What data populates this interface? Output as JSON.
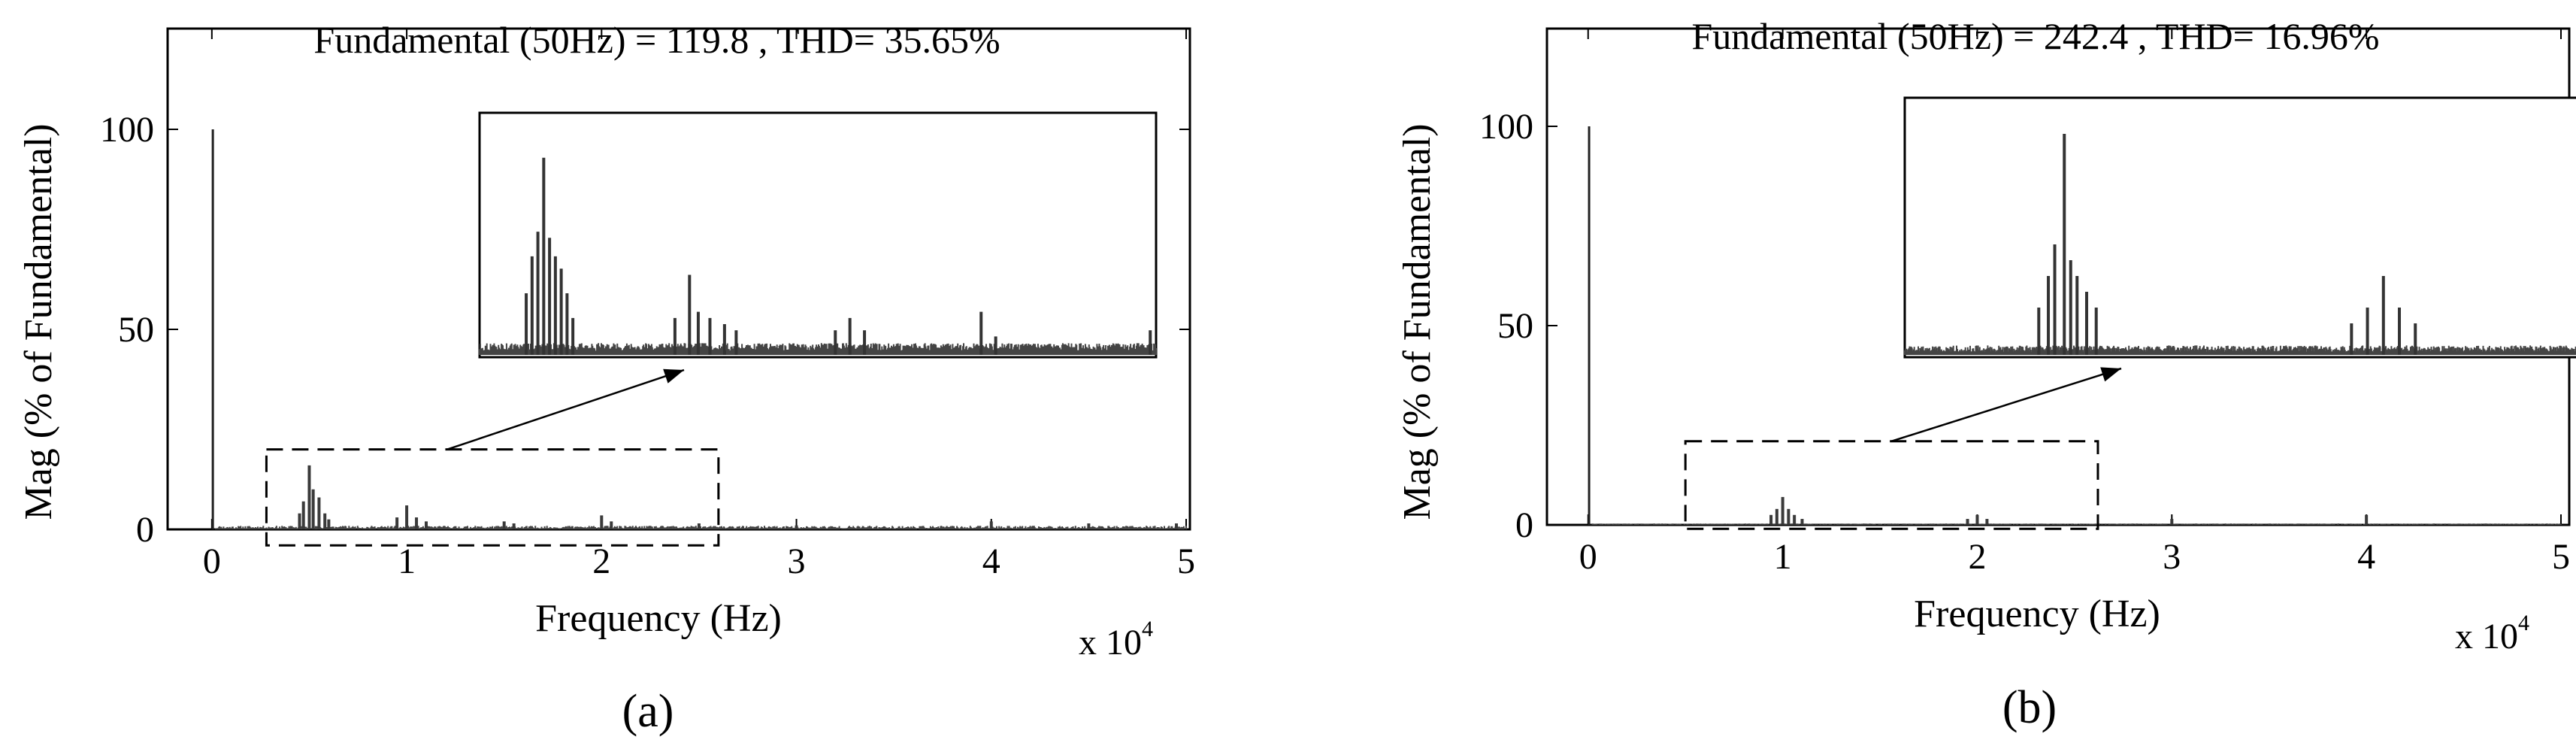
{
  "chart_data": [
    {
      "type": "bar",
      "panel_label": "(a)",
      "title": "Fundamental (50Hz) = 119.8 , THD= 35.65%",
      "xlabel": "Frequency (Hz)",
      "ylabel": "Mag (% of Fundamental)",
      "x_multiplier_label": "x 10",
      "x_multiplier_exponent": "4",
      "xlim": [
        -0.2,
        5.0
      ],
      "ylim": [
        0,
        110
      ],
      "xticks": [
        "0",
        "1",
        "2",
        "3",
        "4",
        "5"
      ],
      "yticks": [
        "0",
        "50",
        "100"
      ],
      "grid": false,
      "fundamental": {
        "x": 0.005,
        "y": 100
      },
      "peaks": [
        {
          "x": 0.5,
          "y": 16
        },
        {
          "x": 0.52,
          "y": 10
        },
        {
          "x": 0.47,
          "y": 7
        },
        {
          "x": 0.55,
          "y": 8
        },
        {
          "x": 0.45,
          "y": 4
        },
        {
          "x": 0.58,
          "y": 4
        },
        {
          "x": 0.6,
          "y": 2.5
        },
        {
          "x": 1.0,
          "y": 6
        },
        {
          "x": 0.95,
          "y": 3
        },
        {
          "x": 1.05,
          "y": 3
        },
        {
          "x": 1.1,
          "y": 2
        },
        {
          "x": 1.5,
          "y": 2
        },
        {
          "x": 1.55,
          "y": 1.5
        },
        {
          "x": 2.0,
          "y": 3.5
        },
        {
          "x": 2.05,
          "y": 2
        },
        {
          "x": 2.5,
          "y": 1.5
        },
        {
          "x": 3.0,
          "y": 1
        },
        {
          "x": 4.0,
          "y": 2
        },
        {
          "x": 4.5,
          "y": 1.5
        },
        {
          "x": 4.95,
          "y": 1.5
        }
      ],
      "noise_level": 1.0,
      "zoom_box": {
        "x_range": [
          0.28,
          2.6
        ],
        "y_range": [
          -4,
          20
        ]
      },
      "inset": {
        "x_range": [
          0.28,
          2.6
        ],
        "y_max": 18,
        "peaks": [
          {
            "x": 0.5,
            "y": 16
          },
          {
            "x": 0.48,
            "y": 10
          },
          {
            "x": 0.46,
            "y": 8
          },
          {
            "x": 0.52,
            "y": 9.5
          },
          {
            "x": 0.54,
            "y": 8
          },
          {
            "x": 0.56,
            "y": 7
          },
          {
            "x": 0.58,
            "y": 5
          },
          {
            "x": 0.44,
            "y": 5
          },
          {
            "x": 0.6,
            "y": 3
          },
          {
            "x": 0.95,
            "y": 3
          },
          {
            "x": 1.0,
            "y": 6.5
          },
          {
            "x": 1.03,
            "y": 3.5
          },
          {
            "x": 1.07,
            "y": 3
          },
          {
            "x": 1.12,
            "y": 2.5
          },
          {
            "x": 1.16,
            "y": 2
          },
          {
            "x": 1.5,
            "y": 2
          },
          {
            "x": 1.55,
            "y": 3
          },
          {
            "x": 1.6,
            "y": 2
          },
          {
            "x": 2.0,
            "y": 3.5
          },
          {
            "x": 2.05,
            "y": 1.5
          },
          {
            "x": 2.58,
            "y": 2
          }
        ],
        "noise_level": 0.8
      }
    },
    {
      "type": "bar",
      "panel_label": "(b)",
      "title": "Fundamental (50Hz) = 242.4 , THD= 16.96%",
      "xlabel": "Frequency (Hz)",
      "ylabel": "Mag (% of Fundamental)",
      "x_multiplier_label": "x 10",
      "x_multiplier_exponent": "4",
      "xlim": [
        -0.2,
        5.0
      ],
      "ylim": [
        0,
        110
      ],
      "xticks": [
        "0",
        "1",
        "2",
        "3",
        "4",
        "5"
      ],
      "yticks": [
        "0",
        "50",
        "100"
      ],
      "grid": false,
      "fundamental": {
        "x": 0.005,
        "y": 100
      },
      "peaks": [
        {
          "x": 1.0,
          "y": 7
        },
        {
          "x": 0.97,
          "y": 4
        },
        {
          "x": 1.03,
          "y": 4
        },
        {
          "x": 0.94,
          "y": 2.5
        },
        {
          "x": 1.06,
          "y": 2.5
        },
        {
          "x": 1.1,
          "y": 1.5
        },
        {
          "x": 2.0,
          "y": 2.5
        },
        {
          "x": 1.95,
          "y": 1.5
        },
        {
          "x": 2.05,
          "y": 1.5
        },
        {
          "x": 3.0,
          "y": 1.5
        },
        {
          "x": 4.0,
          "y": 2.5
        }
      ],
      "noise_level": 0.4,
      "zoom_box": {
        "x_range": [
          0.5,
          2.62
        ],
        "y_range": [
          -1,
          21
        ]
      },
      "inset": {
        "x_range": [
          0.5,
          2.62
        ],
        "y_max": 7.5,
        "peaks": [
          {
            "x": 1.0,
            "y": 7
          },
          {
            "x": 0.97,
            "y": 3.5
          },
          {
            "x": 0.95,
            "y": 2.5
          },
          {
            "x": 1.02,
            "y": 3
          },
          {
            "x": 1.04,
            "y": 2.5
          },
          {
            "x": 1.07,
            "y": 2
          },
          {
            "x": 0.92,
            "y": 1.5
          },
          {
            "x": 1.1,
            "y": 1.5
          },
          {
            "x": 2.0,
            "y": 2.5
          },
          {
            "x": 1.95,
            "y": 1.5
          },
          {
            "x": 2.05,
            "y": 1.5
          },
          {
            "x": 1.9,
            "y": 1
          },
          {
            "x": 2.1,
            "y": 1
          }
        ],
        "noise_level": 0.25
      }
    }
  ]
}
